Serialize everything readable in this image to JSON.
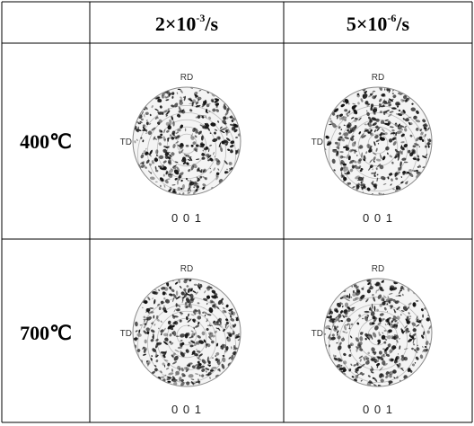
{
  "table": {
    "columns": [
      {
        "base": "2×10",
        "exp": "-3",
        "unit": "/s"
      },
      {
        "base": "5×10",
        "exp": "-6",
        "unit": "/s"
      }
    ],
    "rows": [
      {
        "label": "400℃",
        "cells": [
          {
            "top": "RD",
            "left": "TD",
            "caption": "0 0 1"
          },
          {
            "top": "RD",
            "left": "TD",
            "caption": "0 0 1"
          }
        ]
      },
      {
        "label": "700℃",
        "cells": [
          {
            "top": "RD",
            "left": "TD",
            "caption": "0 0 1"
          },
          {
            "top": "RD",
            "left": "TD",
            "caption": "0 0 1"
          }
        ]
      }
    ]
  }
}
